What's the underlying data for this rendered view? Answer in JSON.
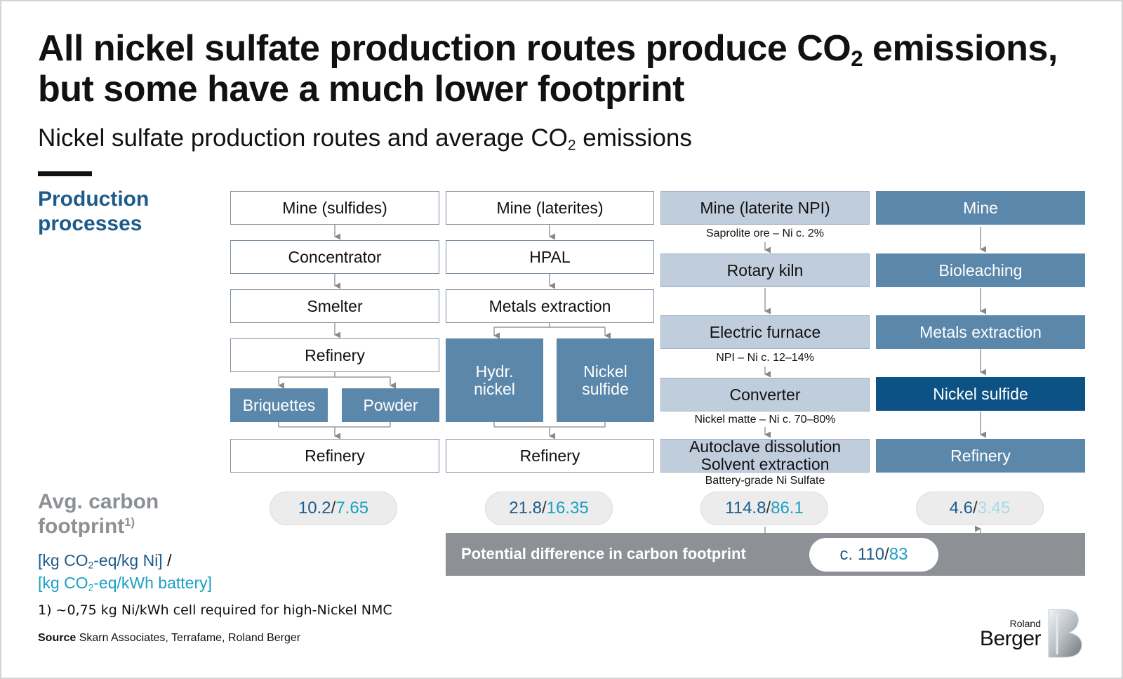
{
  "title": {
    "line1_pre": "All nickel sulfate production routes produce CO",
    "line1_sub": "2",
    "line1_post": " emissions,",
    "line2": "but some have a much lower footprint"
  },
  "subtitle": {
    "pre": "Nickel sulfate production routes and average CO",
    "sub": "2",
    "post": " emissions"
  },
  "labels": {
    "production_line1": "Production",
    "production_line2": "processes",
    "avg_line1": "Avg. carbon",
    "avg_line2": "footprint",
    "avg_sup": "1)",
    "unit1_pre": "[kg CO",
    "unit1_sub": "2",
    "unit1_post": "-eq/kg Ni]",
    "unit_slash": " /",
    "unit2_pre": "[kg CO",
    "unit2_sub": "2",
    "unit2_post": "-eq/kWh battery]"
  },
  "footnote": "1) ~0,75 kg Ni/kWh cell required for high-Nickel NMC",
  "source": {
    "label": "Source",
    "text": " Skarn Associates, Terrafame, Roland Berger"
  },
  "routes": {
    "sulfides": {
      "mine": "Mine (sulfides)",
      "concentrator": "Concentrator",
      "smelter": "Smelter",
      "refinery1": "Refinery",
      "briquettes": "Briquettes",
      "powder": "Powder",
      "refinery2": "Refinery",
      "value1": "10.2",
      "value2": "7.65"
    },
    "laterites": {
      "mine": "Mine (laterites)",
      "hpal": "HPAL",
      "metals": "Metals extraction",
      "hydr1": "Hydr.",
      "hydr2": "nickel",
      "sulf1": "Nickel",
      "sulf2": "sulfide",
      "refinery": "Refinery",
      "value1": "21.8",
      "value2": "16.35"
    },
    "npi": {
      "mine": "Mine (laterite NPI)",
      "note1": "Saprolite ore – Ni c. 2%",
      "kiln": "Rotary kiln",
      "furnace": "Electric furnace",
      "note2": "NPI – Ni c. 12–14%",
      "converter": "Converter",
      "note3": "Nickel matte – Ni c. 70–80%",
      "autoclave1": "Autoclave dissolution",
      "autoclave2": "Solvent extraction",
      "note4": "Battery-grade Ni Sulfate",
      "value1": "114.8",
      "value2": "86.1"
    },
    "bio": {
      "mine": "Mine",
      "bioleaching": "Bioleaching",
      "metals": "Metals extraction",
      "sulfide": "Nickel sulfide",
      "refinery": "Refinery",
      "value1": "4.6",
      "value2": "3.45"
    }
  },
  "difference": {
    "label": "Potential difference in carbon footprint",
    "value1": "c. 110",
    "value2": "83"
  },
  "value_separator": " / ",
  "logo": {
    "line1": "Roland",
    "line2": "Berger"
  },
  "colors": {
    "blue_dark": "#1d5b8a",
    "cyan": "#1aa0c4",
    "box_mid": "#5b87ab",
    "box_light": "#bfcddc",
    "box_dark": "#0d5285",
    "grey": "#8d9196"
  }
}
